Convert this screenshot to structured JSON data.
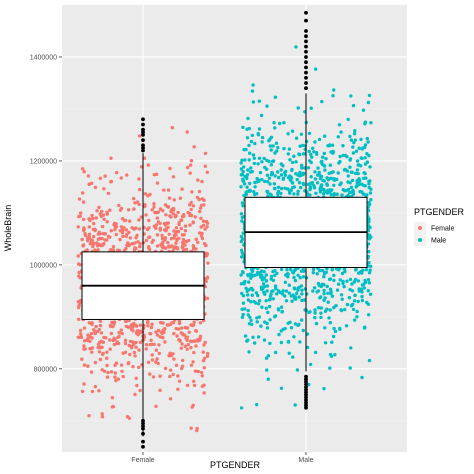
{
  "chart_data": {
    "type": "boxplot",
    "xlabel": "PTGENDER",
    "ylabel": "WholeBrain",
    "ylim": [
      640000,
      1500000
    ],
    "y_ticks": [
      800000,
      1000000,
      1200000,
      1400000
    ],
    "y_tick_labels": [
      "800000",
      "1000000",
      "1200000",
      "1400000"
    ],
    "categories": [
      "Female",
      "Male"
    ],
    "grid": true,
    "legend": {
      "title": "PTGENDER",
      "position": "right",
      "entries": [
        {
          "label": "Female",
          "color": "#F8766D"
        },
        {
          "label": "Male",
          "color": "#00BFC4"
        }
      ]
    },
    "series": [
      {
        "name": "Female",
        "color": "#F8766D",
        "box": {
          "min": 670000,
          "q1": 895000,
          "median": 960000,
          "q3": 1025000,
          "max": 1215000
        },
        "outliers": [
          650000,
          660000,
          675000,
          685000,
          690000,
          695000,
          700000,
          1220000,
          1225000,
          1230000,
          1240000,
          1250000,
          1255000,
          1260000,
          1270000,
          1280000
        ],
        "jitter_range": [
          670000,
          1280000
        ],
        "n_points": 1300
      },
      {
        "name": "Male",
        "color": "#00BFC4",
        "box": {
          "min": 795000,
          "q1": 995000,
          "median": 1063000,
          "q3": 1130000,
          "max": 1330000
        },
        "outliers": [
          725000,
          730000,
          735000,
          740000,
          745000,
          750000,
          755000,
          760000,
          765000,
          770000,
          775000,
          780000,
          785000,
          1340000,
          1350000,
          1360000,
          1370000,
          1380000,
          1390000,
          1400000,
          1410000,
          1420000,
          1430000,
          1440000,
          1450000,
          1470000,
          1485000
        ],
        "jitter_range": [
          720000,
          1485000
        ],
        "n_points": 1550
      }
    ],
    "colors": {
      "panel_bg": "#EBEBEB",
      "grid_major": "#FFFFFF",
      "grid_minor": "#F2F2F2",
      "box_fill": "#FFFFFF",
      "box_line": "#000000"
    }
  }
}
